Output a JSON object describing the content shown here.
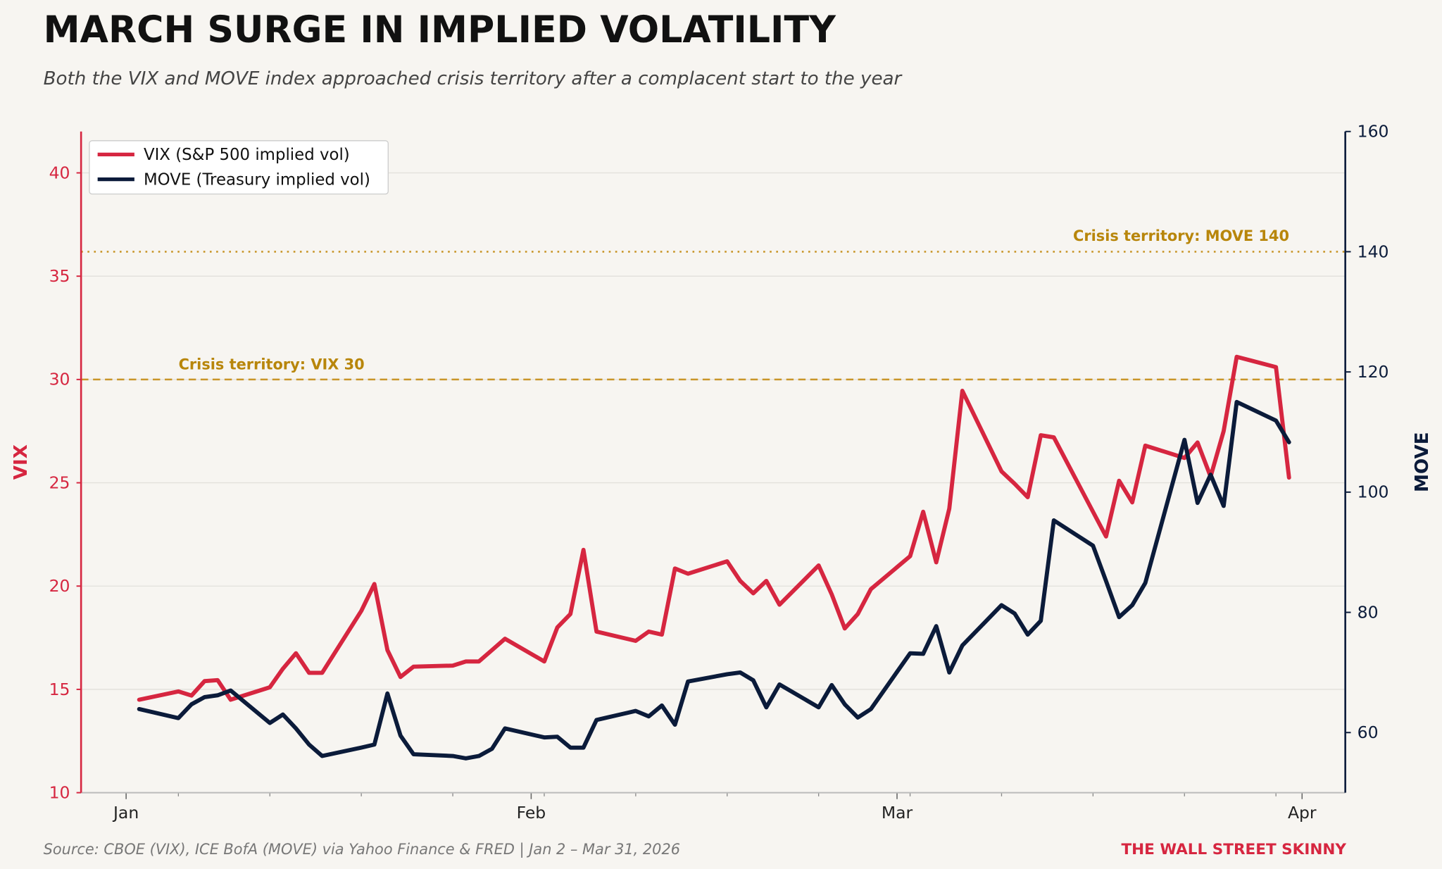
{
  "title": "MARCH SURGE IN IMPLIED VOLATILITY",
  "subtitle": "Both the VIX and MOVE index approached crisis territory after a complacent start to the year",
  "source": "Source: CBOE (VIX), ICE BofA (MOVE) via Yahoo Finance & FRED  |  Jan 2 – Mar 31, 2026",
  "brand": "THE WALL STREET SKINNY",
  "colors": {
    "vix": "#d62640",
    "move": "#0b1b3a",
    "threshold": "#c9962a",
    "threshold_text": "#b8860b",
    "background": "#f7f5f1"
  },
  "chart_data": {
    "type": "line",
    "xlabel": "",
    "x_ticks": [
      "Jan",
      "Feb",
      "Mar",
      "Apr"
    ],
    "x_tick_dates": [
      "2026-01-01",
      "2026-02-01",
      "2026-03-01",
      "2026-04-01"
    ],
    "xlim": [
      "2025-12-31",
      "2026-04-04"
    ],
    "y_left": {
      "label": "VIX",
      "lim": [
        10,
        42
      ],
      "ticks": [
        10,
        15,
        20,
        25,
        30,
        35,
        40
      ]
    },
    "y_right": {
      "label": "MOVE",
      "lim": [
        50,
        160
      ],
      "ticks": [
        60,
        80,
        100,
        120,
        140,
        160
      ]
    },
    "grid": true,
    "legend_position": "top-left",
    "thresholds": [
      {
        "axis": "left",
        "value": 30,
        "style": "dashed",
        "label": "Crisis territory: VIX 30"
      },
      {
        "axis": "right",
        "value": 140,
        "style": "dotted",
        "label": "Crisis territory: MOVE 140"
      }
    ],
    "dates": [
      "2026-01-02",
      "2026-01-05",
      "2026-01-06",
      "2026-01-07",
      "2026-01-08",
      "2026-01-09",
      "2026-01-12",
      "2026-01-13",
      "2026-01-14",
      "2026-01-15",
      "2026-01-16",
      "2026-01-19",
      "2026-01-20",
      "2026-01-21",
      "2026-01-22",
      "2026-01-23",
      "2026-01-26",
      "2026-01-27",
      "2026-01-28",
      "2026-01-29",
      "2026-01-30",
      "2026-02-02",
      "2026-02-03",
      "2026-02-04",
      "2026-02-05",
      "2026-02-06",
      "2026-02-09",
      "2026-02-10",
      "2026-02-11",
      "2026-02-12",
      "2026-02-13",
      "2026-02-16",
      "2026-02-17",
      "2026-02-18",
      "2026-02-19",
      "2026-02-20",
      "2026-02-23",
      "2026-02-24",
      "2026-02-25",
      "2026-02-26",
      "2026-02-27",
      "2026-03-02",
      "2026-03-03",
      "2026-03-04",
      "2026-03-05",
      "2026-03-06",
      "2026-03-09",
      "2026-03-10",
      "2026-03-11",
      "2026-03-12",
      "2026-03-13",
      "2026-03-16",
      "2026-03-17",
      "2026-03-18",
      "2026-03-19",
      "2026-03-20",
      "2026-03-23",
      "2026-03-24",
      "2026-03-25",
      "2026-03-26",
      "2026-03-27",
      "2026-03-30",
      "2026-03-31"
    ],
    "series": [
      {
        "name": "VIX (S&P 500 implied vol)",
        "axis": "left",
        "values": [
          14.5,
          14.9,
          14.7,
          15.4,
          15.45,
          14.5,
          15.1,
          16.0,
          16.75,
          15.8,
          15.8,
          18.8,
          20.1,
          16.9,
          15.6,
          16.1,
          16.15,
          16.35,
          16.35,
          16.9,
          17.45,
          16.35,
          18.0,
          18.65,
          21.75,
          17.8,
          17.35,
          17.8,
          17.65,
          20.85,
          20.6,
          21.2,
          20.25,
          19.65,
          20.25,
          19.1,
          21.0,
          19.6,
          17.95,
          18.65,
          19.85,
          21.45,
          23.6,
          21.15,
          23.75,
          29.45,
          25.55,
          24.95,
          24.3,
          27.3,
          27.2,
          23.6,
          22.4,
          25.1,
          24.05,
          26.8,
          26.2,
          26.95,
          25.3,
          27.5,
          31.1,
          30.6,
          25.25
        ]
      },
      {
        "name": "MOVE (Treasury implied vol)",
        "axis": "right",
        "values": [
          63.9,
          62.4,
          64.7,
          65.9,
          66.2,
          67.0,
          61.6,
          63.0,
          60.7,
          58.0,
          56.1,
          57.5,
          58.0,
          66.5,
          59.5,
          56.4,
          56.1,
          55.7,
          56.1,
          57.3,
          60.7,
          59.2,
          59.3,
          57.5,
          57.5,
          62.1,
          63.6,
          62.7,
          64.5,
          61.3,
          68.5,
          69.7,
          70.0,
          68.7,
          64.2,
          68.0,
          64.2,
          67.9,
          64.7,
          62.5,
          63.9,
          73.2,
          73.1,
          77.7,
          70.0,
          74.5,
          81.2,
          79.8,
          76.3,
          78.6,
          95.3,
          91.1,
          85.2,
          79.2,
          81.2,
          84.9,
          108.7,
          98.2,
          102.9,
          97.7,
          115.0,
          111.9,
          108.3
        ]
      }
    ]
  }
}
